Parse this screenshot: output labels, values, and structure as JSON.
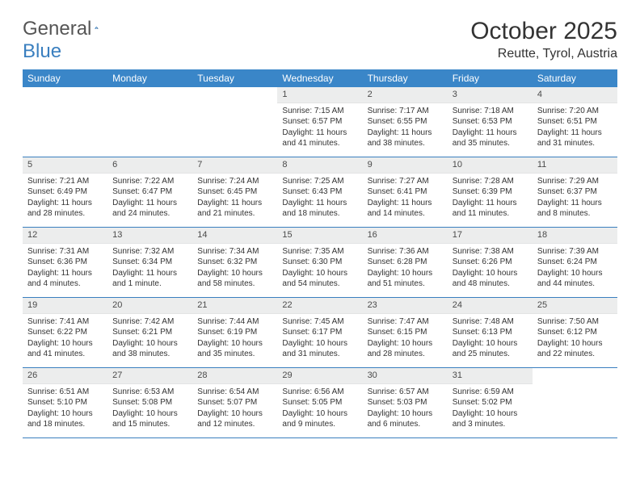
{
  "brand": {
    "part1": "General",
    "part2": "Blue"
  },
  "title": "October 2025",
  "location": "Reutte, Tyrol, Austria",
  "colors": {
    "header_bg": "#3a86c8",
    "header_text": "#ffffff",
    "rule": "#3a7fbf",
    "daynum_bg": "#eceded",
    "text": "#333333"
  },
  "weekdays": [
    "Sunday",
    "Monday",
    "Tuesday",
    "Wednesday",
    "Thursday",
    "Friday",
    "Saturday"
  ],
  "weeks": [
    [
      null,
      null,
      null,
      {
        "n": "1",
        "sunrise": "7:15 AM",
        "sunset": "6:57 PM",
        "daylight": "11 hours and 41 minutes."
      },
      {
        "n": "2",
        "sunrise": "7:17 AM",
        "sunset": "6:55 PM",
        "daylight": "11 hours and 38 minutes."
      },
      {
        "n": "3",
        "sunrise": "7:18 AM",
        "sunset": "6:53 PM",
        "daylight": "11 hours and 35 minutes."
      },
      {
        "n": "4",
        "sunrise": "7:20 AM",
        "sunset": "6:51 PM",
        "daylight": "11 hours and 31 minutes."
      }
    ],
    [
      {
        "n": "5",
        "sunrise": "7:21 AM",
        "sunset": "6:49 PM",
        "daylight": "11 hours and 28 minutes."
      },
      {
        "n": "6",
        "sunrise": "7:22 AM",
        "sunset": "6:47 PM",
        "daylight": "11 hours and 24 minutes."
      },
      {
        "n": "7",
        "sunrise": "7:24 AM",
        "sunset": "6:45 PM",
        "daylight": "11 hours and 21 minutes."
      },
      {
        "n": "8",
        "sunrise": "7:25 AM",
        "sunset": "6:43 PM",
        "daylight": "11 hours and 18 minutes."
      },
      {
        "n": "9",
        "sunrise": "7:27 AM",
        "sunset": "6:41 PM",
        "daylight": "11 hours and 14 minutes."
      },
      {
        "n": "10",
        "sunrise": "7:28 AM",
        "sunset": "6:39 PM",
        "daylight": "11 hours and 11 minutes."
      },
      {
        "n": "11",
        "sunrise": "7:29 AM",
        "sunset": "6:37 PM",
        "daylight": "11 hours and 8 minutes."
      }
    ],
    [
      {
        "n": "12",
        "sunrise": "7:31 AM",
        "sunset": "6:36 PM",
        "daylight": "11 hours and 4 minutes."
      },
      {
        "n": "13",
        "sunrise": "7:32 AM",
        "sunset": "6:34 PM",
        "daylight": "11 hours and 1 minute."
      },
      {
        "n": "14",
        "sunrise": "7:34 AM",
        "sunset": "6:32 PM",
        "daylight": "10 hours and 58 minutes."
      },
      {
        "n": "15",
        "sunrise": "7:35 AM",
        "sunset": "6:30 PM",
        "daylight": "10 hours and 54 minutes."
      },
      {
        "n": "16",
        "sunrise": "7:36 AM",
        "sunset": "6:28 PM",
        "daylight": "10 hours and 51 minutes."
      },
      {
        "n": "17",
        "sunrise": "7:38 AM",
        "sunset": "6:26 PM",
        "daylight": "10 hours and 48 minutes."
      },
      {
        "n": "18",
        "sunrise": "7:39 AM",
        "sunset": "6:24 PM",
        "daylight": "10 hours and 44 minutes."
      }
    ],
    [
      {
        "n": "19",
        "sunrise": "7:41 AM",
        "sunset": "6:22 PM",
        "daylight": "10 hours and 41 minutes."
      },
      {
        "n": "20",
        "sunrise": "7:42 AM",
        "sunset": "6:21 PM",
        "daylight": "10 hours and 38 minutes."
      },
      {
        "n": "21",
        "sunrise": "7:44 AM",
        "sunset": "6:19 PM",
        "daylight": "10 hours and 35 minutes."
      },
      {
        "n": "22",
        "sunrise": "7:45 AM",
        "sunset": "6:17 PM",
        "daylight": "10 hours and 31 minutes."
      },
      {
        "n": "23",
        "sunrise": "7:47 AM",
        "sunset": "6:15 PM",
        "daylight": "10 hours and 28 minutes."
      },
      {
        "n": "24",
        "sunrise": "7:48 AM",
        "sunset": "6:13 PM",
        "daylight": "10 hours and 25 minutes."
      },
      {
        "n": "25",
        "sunrise": "7:50 AM",
        "sunset": "6:12 PM",
        "daylight": "10 hours and 22 minutes."
      }
    ],
    [
      {
        "n": "26",
        "sunrise": "6:51 AM",
        "sunset": "5:10 PM",
        "daylight": "10 hours and 18 minutes."
      },
      {
        "n": "27",
        "sunrise": "6:53 AM",
        "sunset": "5:08 PM",
        "daylight": "10 hours and 15 minutes."
      },
      {
        "n": "28",
        "sunrise": "6:54 AM",
        "sunset": "5:07 PM",
        "daylight": "10 hours and 12 minutes."
      },
      {
        "n": "29",
        "sunrise": "6:56 AM",
        "sunset": "5:05 PM",
        "daylight": "10 hours and 9 minutes."
      },
      {
        "n": "30",
        "sunrise": "6:57 AM",
        "sunset": "5:03 PM",
        "daylight": "10 hours and 6 minutes."
      },
      {
        "n": "31",
        "sunrise": "6:59 AM",
        "sunset": "5:02 PM",
        "daylight": "10 hours and 3 minutes."
      },
      null
    ]
  ],
  "labels": {
    "sunrise": "Sunrise: ",
    "sunset": "Sunset: ",
    "daylight": "Daylight: "
  }
}
